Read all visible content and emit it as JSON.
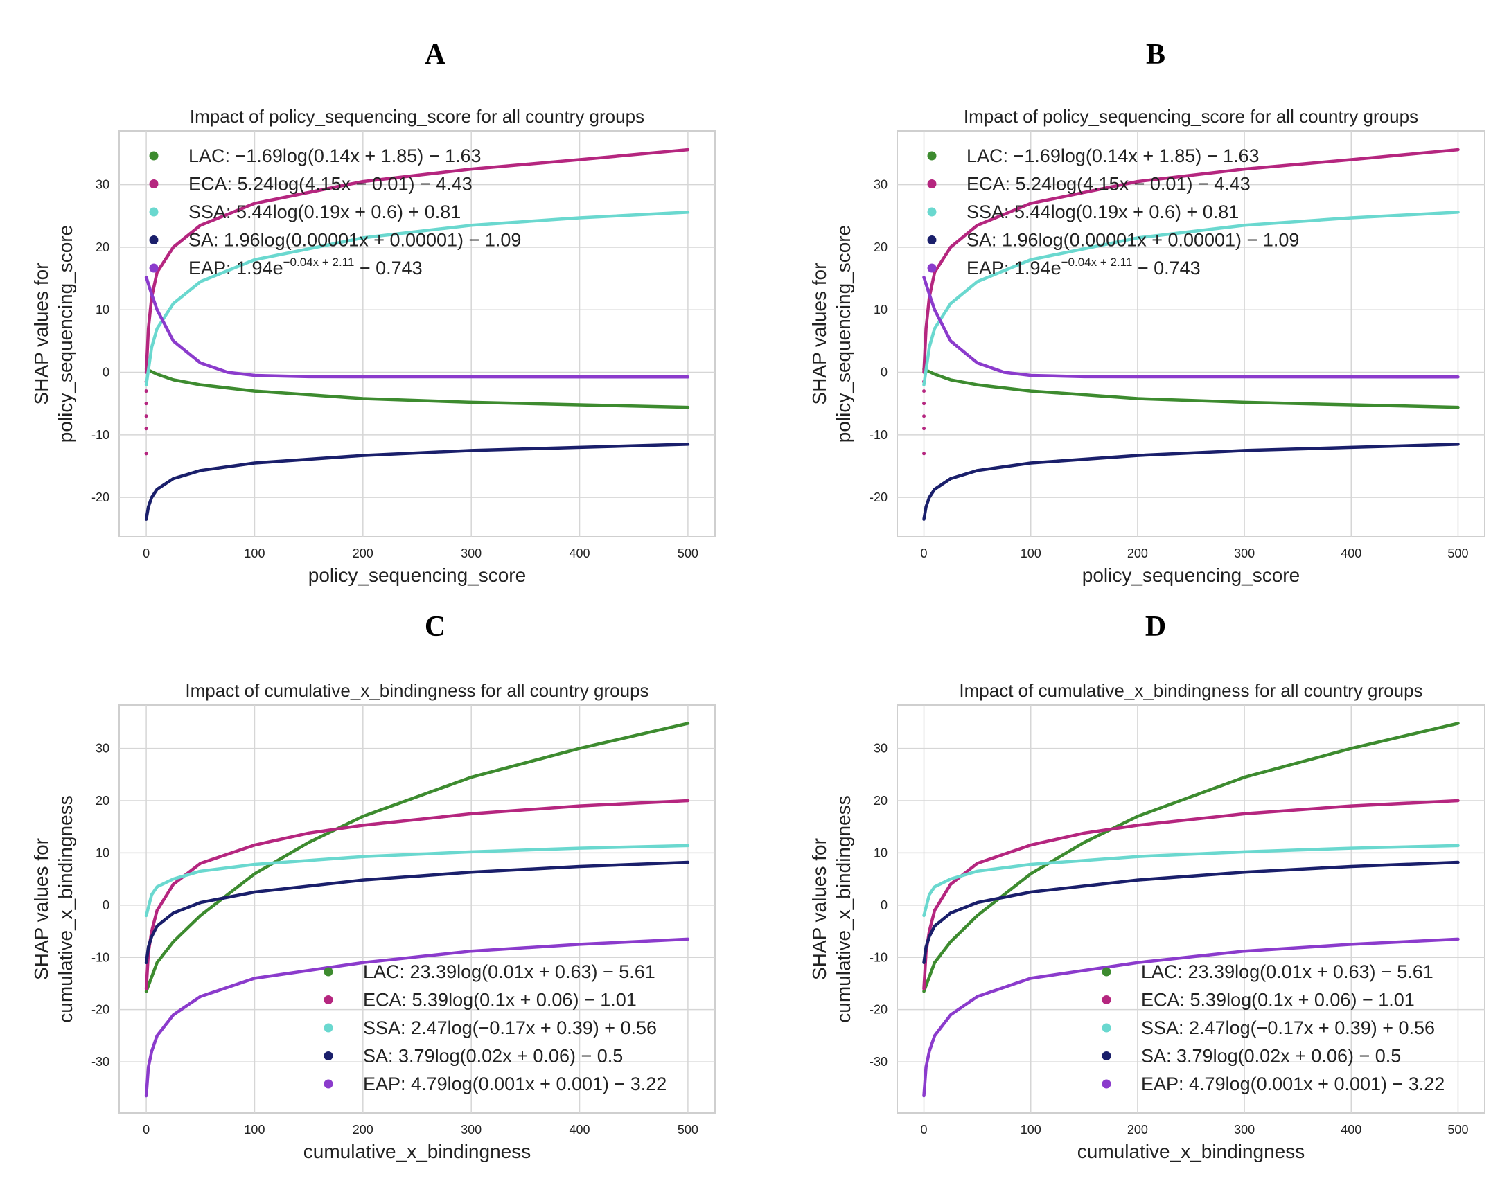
{
  "chart_data": [
    {
      "panel": "A",
      "type": "line",
      "title": "Impact of policy_sequencing_score for all country groups",
      "xlabel": "policy_sequencing_score",
      "ylabel": [
        "SHAP values for",
        "policy_sequencing_score"
      ],
      "xlim": [
        -25,
        525
      ],
      "ylim": [
        -26.3,
        38.6
      ],
      "xticks": [
        0,
        100,
        200,
        300,
        400,
        500
      ],
      "yticks": [
        -20,
        -10,
        0,
        10,
        20,
        30
      ],
      "grid": true,
      "legend_position": "top-left",
      "series": [
        {
          "name": "LAC",
          "color": "#3d8b2f",
          "legend": {
            "text": "LAC: −1.69log(0.14x + 1.85) − 1.63"
          },
          "x": [
            0,
            10,
            25,
            50,
            100,
            200,
            300,
            400,
            500
          ],
          "y": [
            0.5,
            -0.3,
            -1.2,
            -2.0,
            -3.0,
            -4.2,
            -4.8,
            -5.2,
            -5.6
          ]
        },
        {
          "name": "ECA",
          "color": "#b5267f",
          "legend": {
            "text": "ECA: 5.24log(4.15x − 0.01) − 4.43"
          },
          "x": [
            0,
            2,
            5,
            10,
            25,
            50,
            100,
            200,
            300,
            400,
            500
          ],
          "y": [
            0,
            7,
            12,
            16,
            20,
            23.5,
            27,
            30.5,
            32.5,
            34,
            35.6
          ],
          "points": [
            [
              0,
              -1.5
            ],
            [
              0,
              -3
            ],
            [
              0,
              -5
            ],
            [
              0,
              -7
            ],
            [
              0,
              -9
            ],
            [
              0,
              -13
            ]
          ]
        },
        {
          "name": "SSA",
          "color": "#6ad8cf",
          "legend": {
            "text": "SSA: 5.44log(0.19x + 0.6) + 0.81"
          },
          "x": [
            0,
            5,
            10,
            25,
            50,
            100,
            200,
            300,
            400,
            500
          ],
          "y": [
            -2,
            4,
            7,
            11,
            14.5,
            18,
            21.5,
            23.5,
            24.7,
            25.6
          ]
        },
        {
          "name": "SA",
          "color": "#1a1f6b",
          "legend": {
            "text": "SA: 1.96log(0.00001x + 0.00001) − 1.09"
          },
          "x": [
            0,
            2,
            5,
            10,
            25,
            50,
            100,
            200,
            300,
            400,
            500
          ],
          "y": [
            -23.5,
            -21.5,
            -20,
            -18.7,
            -17,
            -15.7,
            -14.5,
            -13.3,
            -12.5,
            -12,
            -11.5
          ]
        },
        {
          "name": "EAP",
          "color": "#8b3bcc",
          "legend": {
            "text": "EAP: 1.94e",
            "sup": "−0.04x + 2.11",
            "tail": " − 0.743"
          },
          "x": [
            0,
            5,
            10,
            25,
            50,
            75,
            100,
            150,
            500
          ],
          "y": [
            15.2,
            12.5,
            10,
            5,
            1.5,
            0,
            -0.5,
            -0.7,
            -0.75
          ]
        }
      ]
    },
    {
      "panel": "B",
      "type": "line",
      "title": "Impact of policy_sequencing_score for all country groups",
      "xlabel": "policy_sequencing_score",
      "ylabel": [
        "SHAP values for",
        "policy_sequencing_score"
      ],
      "xlim": [
        -25,
        525
      ],
      "ylim": [
        -26.3,
        38.6
      ],
      "xticks": [
        0,
        100,
        200,
        300,
        400,
        500
      ],
      "yticks": [
        -20,
        -10,
        0,
        10,
        20,
        30
      ],
      "grid": true,
      "legend_position": "top-left",
      "series": [
        {
          "name": "LAC",
          "color": "#3d8b2f",
          "legend": {
            "text": "LAC: −1.69log(0.14x + 1.85) − 1.63"
          },
          "x": [
            0,
            10,
            25,
            50,
            100,
            200,
            300,
            400,
            500
          ],
          "y": [
            0.5,
            -0.3,
            -1.2,
            -2.0,
            -3.0,
            -4.2,
            -4.8,
            -5.2,
            -5.6
          ]
        },
        {
          "name": "ECA",
          "color": "#b5267f",
          "legend": {
            "text": "ECA: 5.24log(4.15x − 0.01) − 4.43"
          },
          "x": [
            0,
            2,
            5,
            10,
            25,
            50,
            100,
            200,
            300,
            400,
            500
          ],
          "y": [
            0,
            7,
            12,
            16,
            20,
            23.5,
            27,
            30.5,
            32.5,
            34,
            35.6
          ],
          "points": [
            [
              0,
              -1.5
            ],
            [
              0,
              -3
            ],
            [
              0,
              -5
            ],
            [
              0,
              -7
            ],
            [
              0,
              -9
            ],
            [
              0,
              -13
            ]
          ]
        },
        {
          "name": "SSA",
          "color": "#6ad8cf",
          "legend": {
            "text": "SSA: 5.44log(0.19x + 0.6) + 0.81"
          },
          "x": [
            0,
            5,
            10,
            25,
            50,
            100,
            200,
            300,
            400,
            500
          ],
          "y": [
            -2,
            4,
            7,
            11,
            14.5,
            18,
            21.5,
            23.5,
            24.7,
            25.6
          ]
        },
        {
          "name": "SA",
          "color": "#1a1f6b",
          "legend": {
            "text": "SA: 1.96log(0.00001x + 0.00001) − 1.09"
          },
          "x": [
            0,
            2,
            5,
            10,
            25,
            50,
            100,
            200,
            300,
            400,
            500
          ],
          "y": [
            -23.5,
            -21.5,
            -20,
            -18.7,
            -17,
            -15.7,
            -14.5,
            -13.3,
            -12.5,
            -12,
            -11.5
          ]
        },
        {
          "name": "EAP",
          "color": "#8b3bcc",
          "legend": {
            "text": "EAP: 1.94e",
            "sup": "−0.04x + 2.11",
            "tail": " − 0.743"
          },
          "x": [
            0,
            5,
            10,
            25,
            50,
            75,
            100,
            150,
            500
          ],
          "y": [
            15.2,
            12.5,
            10,
            5,
            1.5,
            0,
            -0.5,
            -0.7,
            -0.75
          ]
        }
      ]
    },
    {
      "panel": "C",
      "type": "line",
      "title": "Impact of cumulative_x_bindingness for all country groups",
      "xlabel": "cumulative_x_bindingness",
      "ylabel": [
        "SHAP values for",
        "cumulative_x_bindingness"
      ],
      "xlim": [
        -25,
        525
      ],
      "ylim": [
        -39.8,
        38.3
      ],
      "xticks": [
        0,
        100,
        200,
        300,
        400,
        500
      ],
      "yticks": [
        -30,
        -20,
        -10,
        0,
        10,
        20,
        30
      ],
      "grid": true,
      "legend_position": "lower-right",
      "series": [
        {
          "name": "LAC",
          "color": "#3d8b2f",
          "legend": {
            "text": "LAC: 23.39log(0.01x + 0.63) − 5.61"
          },
          "x": [
            0,
            10,
            25,
            50,
            100,
            150,
            200,
            300,
            400,
            500
          ],
          "y": [
            -16.5,
            -11,
            -7,
            -2,
            6,
            12,
            17,
            24.5,
            30,
            34.8
          ]
        },
        {
          "name": "ECA",
          "color": "#b5267f",
          "legend": {
            "text": "ECA: 5.39log(0.1x + 0.06) − 1.01"
          },
          "x": [
            0,
            2,
            5,
            10,
            25,
            50,
            100,
            150,
            200,
            300,
            400,
            500
          ],
          "y": [
            -16,
            -9,
            -5,
            -1,
            4,
            8,
            11.5,
            13.8,
            15.3,
            17.5,
            19,
            20
          ]
        },
        {
          "name": "SSA",
          "color": "#6ad8cf",
          "legend": {
            "text": "SSA: 2.47log(−0.17x + 0.39) + 0.56"
          },
          "x": [
            0,
            5,
            10,
            25,
            50,
            100,
            200,
            300,
            400,
            500
          ],
          "y": [
            -2,
            2,
            3.5,
            5,
            6.5,
            7.8,
            9.3,
            10.2,
            10.9,
            11.4
          ]
        },
        {
          "name": "SA",
          "color": "#1a1f6b",
          "legend": {
            "text": "SA: 3.79log(0.02x + 0.06) − 0.5"
          },
          "x": [
            0,
            2,
            5,
            10,
            25,
            50,
            100,
            200,
            300,
            400,
            500
          ],
          "y": [
            -11,
            -8,
            -6,
            -4,
            -1.5,
            0.5,
            2.5,
            4.8,
            6.3,
            7.4,
            8.2
          ]
        },
        {
          "name": "EAP",
          "color": "#8b3bcc",
          "legend": {
            "text": "EAP: 4.79log(0.001x + 0.001) − 3.22"
          },
          "x": [
            0,
            2,
            5,
            10,
            25,
            50,
            100,
            200,
            300,
            400,
            500
          ],
          "y": [
            -36.5,
            -31,
            -28,
            -25,
            -21,
            -17.5,
            -14,
            -11,
            -8.8,
            -7.5,
            -6.5
          ]
        }
      ]
    },
    {
      "panel": "D",
      "type": "line",
      "title": "Impact of cumulative_x_bindingness for all country groups",
      "xlabel": "cumulative_x_bindingness",
      "ylabel": [
        "SHAP values for",
        "cumulative_x_bindingness"
      ],
      "xlim": [
        -25,
        525
      ],
      "ylim": [
        -39.8,
        38.3
      ],
      "xticks": [
        0,
        100,
        200,
        300,
        400,
        500
      ],
      "yticks": [
        -30,
        -20,
        -10,
        0,
        10,
        20,
        30
      ],
      "grid": true,
      "legend_position": "lower-right",
      "series": [
        {
          "name": "LAC",
          "color": "#3d8b2f",
          "legend": {
            "text": "LAC: 23.39log(0.01x + 0.63) − 5.61"
          },
          "x": [
            0,
            10,
            25,
            50,
            100,
            150,
            200,
            300,
            400,
            500
          ],
          "y": [
            -16.5,
            -11,
            -7,
            -2,
            6,
            12,
            17,
            24.5,
            30,
            34.8
          ]
        },
        {
          "name": "ECA",
          "color": "#b5267f",
          "legend": {
            "text": "ECA: 5.39log(0.1x + 0.06) − 1.01"
          },
          "x": [
            0,
            2,
            5,
            10,
            25,
            50,
            100,
            150,
            200,
            300,
            400,
            500
          ],
          "y": [
            -16,
            -9,
            -5,
            -1,
            4,
            8,
            11.5,
            13.8,
            15.3,
            17.5,
            19,
            20
          ]
        },
        {
          "name": "SSA",
          "color": "#6ad8cf",
          "legend": {
            "text": "SSA: 2.47log(−0.17x + 0.39) + 0.56"
          },
          "x": [
            0,
            5,
            10,
            25,
            50,
            100,
            200,
            300,
            400,
            500
          ],
          "y": [
            -2,
            2,
            3.5,
            5,
            6.5,
            7.8,
            9.3,
            10.2,
            10.9,
            11.4
          ]
        },
        {
          "name": "SA",
          "color": "#1a1f6b",
          "legend": {
            "text": "SA: 3.79log(0.02x + 0.06) − 0.5"
          },
          "x": [
            0,
            2,
            5,
            10,
            25,
            50,
            100,
            200,
            300,
            400,
            500
          ],
          "y": [
            -11,
            -8,
            -6,
            -4,
            -1.5,
            0.5,
            2.5,
            4.8,
            6.3,
            7.4,
            8.2
          ]
        },
        {
          "name": "EAP",
          "color": "#8b3bcc",
          "legend": {
            "text": "EAP: 4.79log(0.001x + 0.001) − 3.22"
          },
          "x": [
            0,
            2,
            5,
            10,
            25,
            50,
            100,
            200,
            300,
            400,
            500
          ],
          "y": [
            -36.5,
            -31,
            -28,
            -25,
            -21,
            -17.5,
            -14,
            -11,
            -8.8,
            -7.5,
            -6.5
          ]
        }
      ]
    }
  ]
}
